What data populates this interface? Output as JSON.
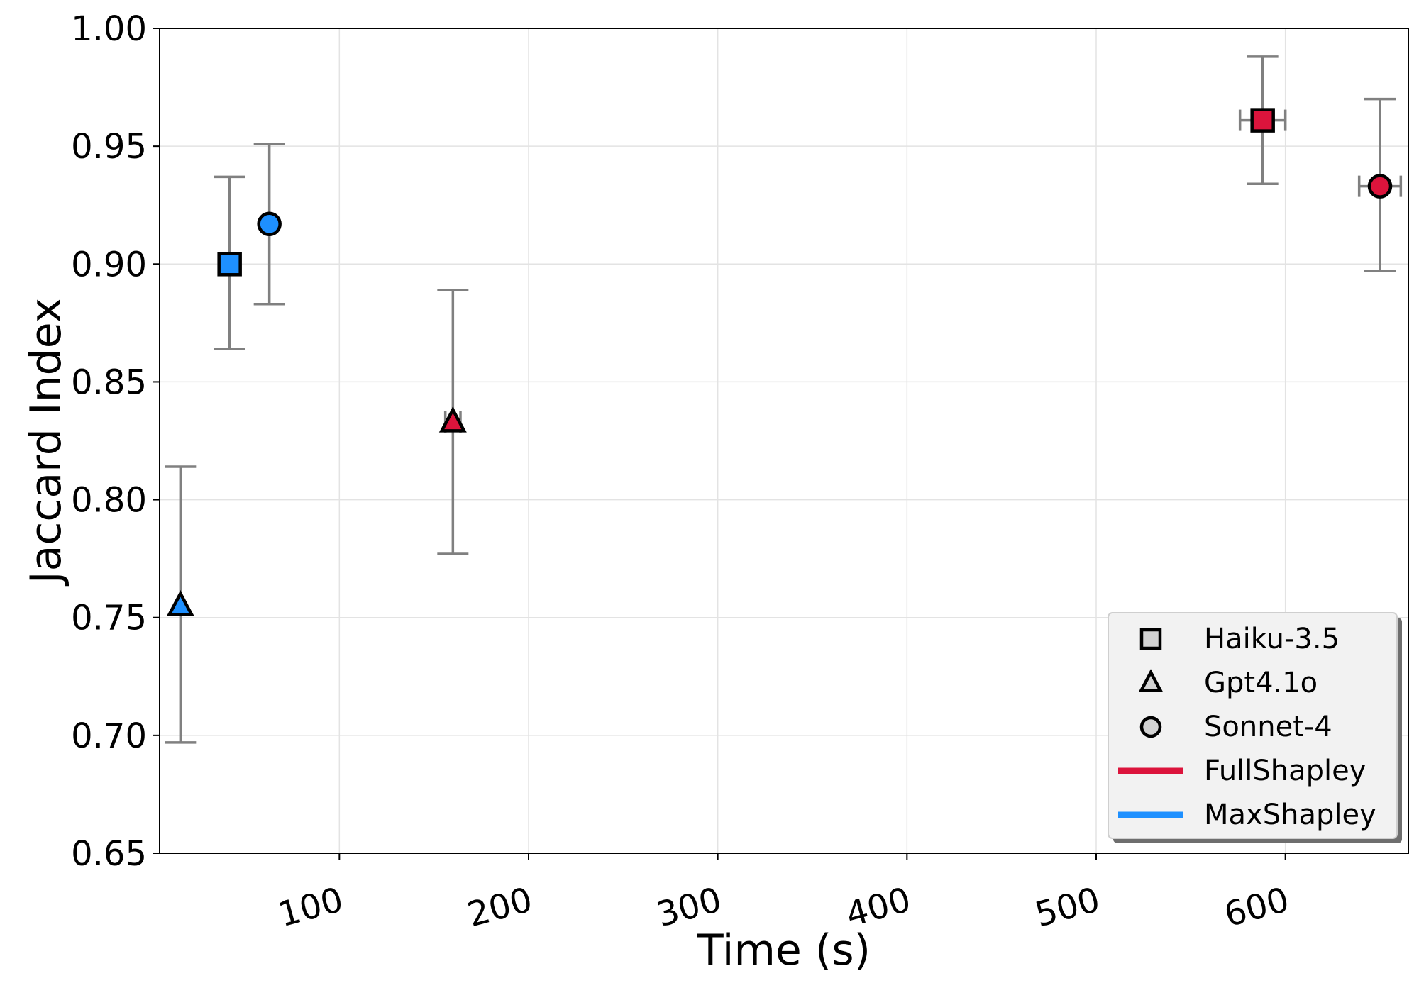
{
  "chart_data": {
    "type": "scatter",
    "xlabel": "Time (s)",
    "ylabel": "Jaccard Index",
    "xlim": [
      5,
      665
    ],
    "ylim": [
      0.65,
      1.0
    ],
    "xticks": [
      {
        "value": 100,
        "label": "100"
      },
      {
        "value": 200,
        "label": "200"
      },
      {
        "value": 300,
        "label": "300"
      },
      {
        "value": 400,
        "label": "400"
      },
      {
        "value": 500,
        "label": "500"
      },
      {
        "value": 600,
        "label": "600"
      }
    ],
    "yticks": [
      {
        "value": 0.65,
        "label": "0.65"
      },
      {
        "value": 0.7,
        "label": "0.70"
      },
      {
        "value": 0.75,
        "label": "0.75"
      },
      {
        "value": 0.8,
        "label": "0.80"
      },
      {
        "value": 0.85,
        "label": "0.85"
      },
      {
        "value": 0.9,
        "label": "0.90"
      },
      {
        "value": 0.95,
        "label": "0.95"
      },
      {
        "value": 1.0,
        "label": "1.00"
      }
    ],
    "grid": true,
    "legend_position": "bottom-right",
    "colors": {
      "FullShapley": "#dc143c",
      "MaxShapley": "#1e90ff",
      "errorbar": "#808080"
    },
    "points": [
      {
        "model": "Haiku-3.5",
        "method": "MaxShapley",
        "marker": "square",
        "x": 42,
        "y": 0.9,
        "y_err": [
          0.864,
          0.937
        ]
      },
      {
        "model": "Gpt4.1o",
        "method": "MaxShapley",
        "marker": "triangle",
        "x": 16,
        "y": 0.755,
        "y_err": [
          0.697,
          0.814
        ]
      },
      {
        "model": "Sonnet-4",
        "method": "MaxShapley",
        "marker": "circle",
        "x": 63,
        "y": 0.917,
        "y_err": [
          0.883,
          0.951
        ],
        "x_err": [
          61,
          65
        ]
      },
      {
        "model": "Gpt4.1o",
        "method": "FullShapley",
        "marker": "triangle",
        "x": 160,
        "y": 0.833,
        "y_err": [
          0.777,
          0.889
        ],
        "x_err": [
          156,
          164
        ]
      },
      {
        "model": "Haiku-3.5",
        "method": "FullShapley",
        "marker": "square",
        "x": 588,
        "y": 0.961,
        "y_err": [
          0.934,
          0.988
        ],
        "x_err": [
          576,
          600
        ]
      },
      {
        "model": "Sonnet-4",
        "method": "FullShapley",
        "marker": "circle",
        "x": 650,
        "y": 0.933,
        "y_err": [
          0.897,
          0.97
        ],
        "x_err": [
          639,
          661
        ]
      }
    ],
    "legend": [
      {
        "label": "Haiku-3.5",
        "kind": "marker",
        "marker": "square"
      },
      {
        "label": "Gpt4.1o",
        "kind": "marker",
        "marker": "triangle"
      },
      {
        "label": "Sonnet-4",
        "kind": "marker",
        "marker": "circle"
      },
      {
        "label": "FullShapley",
        "kind": "line",
        "color": "#dc143c"
      },
      {
        "label": "MaxShapley",
        "kind": "line",
        "color": "#1e90ff"
      }
    ]
  }
}
